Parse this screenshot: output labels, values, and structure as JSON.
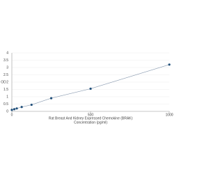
{
  "chart_data": {
    "type": "line",
    "x_label": "Rat Breast And Kidney Expressed Chemokine (BRAK)",
    "x_label_2": "Concentration (pg/ml)",
    "y_label": "OD",
    "x": [
      0,
      15.6,
      31.25,
      62.5,
      125,
      250,
      500,
      1000
    ],
    "values": [
      0.1,
      0.15,
      0.2,
      0.3,
      0.45,
      0.9,
      1.55,
      3.2
    ],
    "color": "#1f4e79",
    "line_color": "#8a9bb0",
    "xlim": [
      0,
      1000
    ],
    "xticks": [
      0,
      500,
      1000
    ],
    "ylim": [
      0,
      4
    ],
    "yticks": [
      0,
      0.5,
      1,
      1.5,
      2,
      2.5,
      3,
      3.5,
      4
    ],
    "grid": true
  }
}
